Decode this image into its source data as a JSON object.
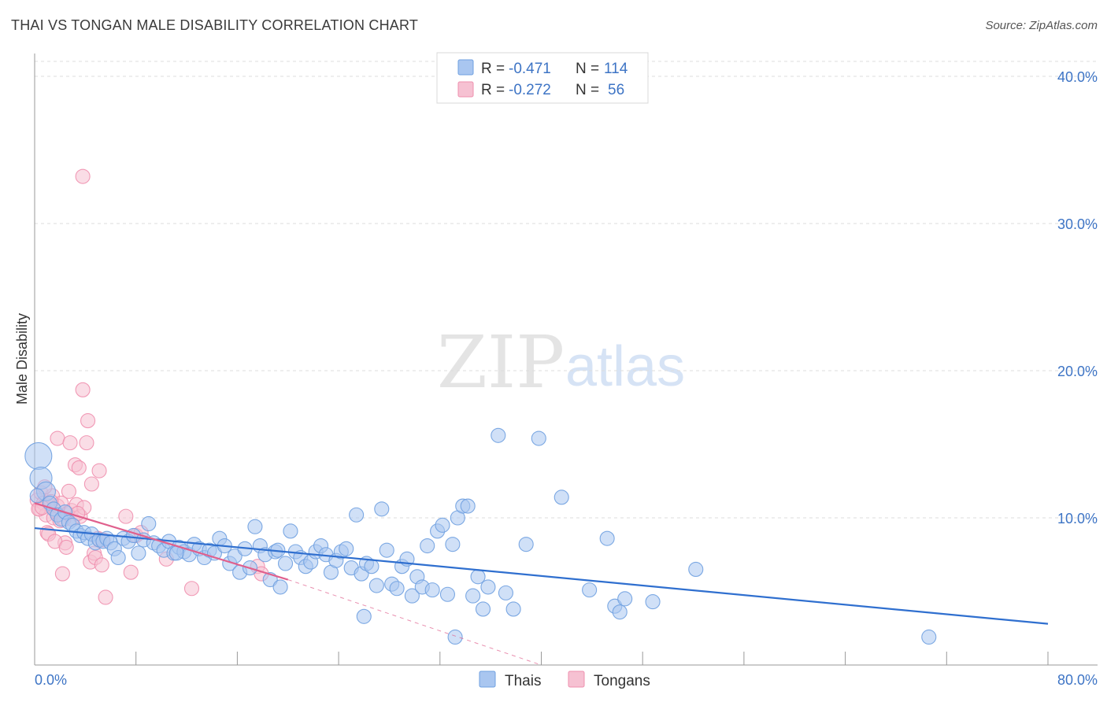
{
  "title": "THAI VS TONGAN MALE DISABILITY CORRELATION CHART",
  "source": "Source: ZipAtlas.com",
  "watermark": {
    "zip": "ZIP",
    "atlas": "atlas"
  },
  "colors": {
    "thais": "#6fa0e0",
    "thais_fill": "#a9c6f0",
    "tongans": "#ef8fae",
    "tongans_fill": "#f6c1d2",
    "thais_line": "#2f6fcf",
    "tongans_line": "#e0608d",
    "tick_text": "#3d74c5"
  },
  "legend_box": {
    "rows": [
      {
        "r_label": "R =",
        "r_value": "-0.471",
        "n_label": "N =",
        "n_value": "114"
      },
      {
        "r_label": "R =",
        "r_value": "-0.272",
        "n_label": "N =",
        "n_value": "56"
      }
    ]
  },
  "bottom_legend": [
    "Thais",
    "Tongans"
  ],
  "chart_data": {
    "type": "scatter",
    "ylabel": "Male Disability",
    "xlim": [
      0,
      80
    ],
    "ylim": [
      0,
      40
    ],
    "x_tick_labels": [
      {
        "value": 0,
        "label": "0.0%"
      },
      {
        "value": 80,
        "label": "80.0%"
      }
    ],
    "y_tick_labels": [
      {
        "value": 10,
        "label": "10.0%"
      },
      {
        "value": 20,
        "label": "20.0%"
      },
      {
        "value": 30,
        "label": "30.0%"
      },
      {
        "value": 40,
        "label": "40.0%"
      }
    ],
    "grid": true,
    "legend_position": "top-center",
    "series": [
      {
        "name": "Thais",
        "r": -0.471,
        "n": 114,
        "trend": {
          "x": [
            0,
            80
          ],
          "y": [
            9.3,
            2.8
          ]
        },
        "points": [
          [
            0.3,
            14.2
          ],
          [
            0.5,
            12.7
          ],
          [
            0.9,
            11.8
          ],
          [
            1.2,
            11.0
          ],
          [
            1.5,
            10.6
          ],
          [
            1.8,
            10.2
          ],
          [
            2.1,
            9.9
          ],
          [
            2.4,
            10.4
          ],
          [
            2.7,
            9.7
          ],
          [
            3.0,
            9.5
          ],
          [
            3.3,
            9.1
          ],
          [
            3.6,
            8.8
          ],
          [
            3.9,
            9.0
          ],
          [
            4.2,
            8.6
          ],
          [
            4.5,
            8.9
          ],
          [
            4.8,
            8.3
          ],
          [
            5.1,
            8.5
          ],
          [
            5.4,
            8.4
          ],
          [
            5.7,
            8.6
          ],
          [
            6.0,
            8.3
          ],
          [
            6.3,
            7.9
          ],
          [
            6.6,
            7.3
          ],
          [
            7.0,
            8.6
          ],
          [
            7.4,
            8.4
          ],
          [
            7.8,
            8.8
          ],
          [
            8.2,
            7.6
          ],
          [
            8.6,
            8.5
          ],
          [
            9.0,
            9.6
          ],
          [
            9.4,
            8.3
          ],
          [
            9.8,
            8.1
          ],
          [
            10.2,
            7.8
          ],
          [
            10.6,
            8.4
          ],
          [
            11.0,
            7.6
          ],
          [
            11.4,
            8.0
          ],
          [
            11.8,
            7.7
          ],
          [
            12.2,
            7.5
          ],
          [
            12.6,
            8.2
          ],
          [
            13.0,
            7.9
          ],
          [
            13.4,
            7.3
          ],
          [
            13.8,
            7.8
          ],
          [
            14.2,
            7.6
          ],
          [
            14.6,
            8.6
          ],
          [
            15.0,
            8.1
          ],
          [
            15.4,
            6.9
          ],
          [
            15.8,
            7.4
          ],
          [
            16.2,
            6.3
          ],
          [
            16.6,
            7.9
          ],
          [
            17.0,
            6.6
          ],
          [
            17.4,
            9.4
          ],
          [
            17.8,
            8.1
          ],
          [
            18.2,
            7.5
          ],
          [
            18.6,
            5.8
          ],
          [
            19.0,
            7.7
          ],
          [
            19.4,
            5.3
          ],
          [
            19.8,
            6.9
          ],
          [
            20.2,
            9.1
          ],
          [
            20.6,
            7.7
          ],
          [
            21.0,
            7.3
          ],
          [
            21.4,
            6.7
          ],
          [
            21.8,
            7.0
          ],
          [
            22.2,
            7.7
          ],
          [
            22.6,
            8.1
          ],
          [
            23.0,
            7.5
          ],
          [
            23.4,
            6.3
          ],
          [
            23.8,
            7.1
          ],
          [
            24.2,
            7.7
          ],
          [
            24.6,
            7.9
          ],
          [
            25.0,
            6.6
          ],
          [
            25.4,
            10.2
          ],
          [
            25.8,
            6.2
          ],
          [
            26.2,
            6.9
          ],
          [
            26.6,
            6.7
          ],
          [
            27.0,
            5.4
          ],
          [
            27.4,
            10.6
          ],
          [
            27.8,
            7.8
          ],
          [
            28.2,
            5.5
          ],
          [
            28.6,
            5.2
          ],
          [
            29.0,
            6.7
          ],
          [
            29.4,
            7.2
          ],
          [
            29.8,
            4.7
          ],
          [
            30.2,
            6.0
          ],
          [
            30.6,
            5.3
          ],
          [
            31.0,
            8.1
          ],
          [
            31.4,
            5.1
          ],
          [
            31.8,
            9.1
          ],
          [
            32.2,
            9.5
          ],
          [
            32.6,
            4.8
          ],
          [
            33.0,
            8.2
          ],
          [
            33.4,
            10.0
          ],
          [
            33.8,
            10.8
          ],
          [
            34.2,
            10.8
          ],
          [
            34.6,
            4.7
          ],
          [
            35.0,
            6.0
          ],
          [
            35.4,
            3.8
          ],
          [
            35.8,
            5.3
          ],
          [
            36.6,
            15.6
          ],
          [
            37.2,
            4.9
          ],
          [
            37.8,
            3.8
          ],
          [
            38.8,
            8.2
          ],
          [
            39.8,
            15.4
          ],
          [
            41.6,
            11.4
          ],
          [
            43.8,
            5.1
          ],
          [
            45.2,
            8.6
          ],
          [
            45.8,
            4.0
          ],
          [
            46.2,
            3.6
          ],
          [
            46.6,
            4.5
          ],
          [
            48.8,
            4.3
          ],
          [
            52.2,
            6.5
          ],
          [
            70.6,
            1.9
          ],
          [
            0.2,
            11.5
          ],
          [
            26.0,
            3.3
          ],
          [
            33.2,
            1.9
          ],
          [
            11.2,
            7.6
          ],
          [
            19.2,
            7.8
          ]
        ]
      },
      {
        "name": "Tongans",
        "r": -0.272,
        "n": 56,
        "trend": {
          "x": [
            0,
            20
          ],
          "y": [
            11.0,
            5.8
          ],
          "dashed_to": {
            "x": 40,
            "y": 0.0
          }
        },
        "points": [
          [
            0.2,
            11.2
          ],
          [
            0.4,
            10.6
          ],
          [
            0.5,
            11.7
          ],
          [
            0.7,
            11.0
          ],
          [
            0.9,
            10.2
          ],
          [
            1.0,
            9.0
          ],
          [
            1.2,
            10.9
          ],
          [
            1.4,
            11.5
          ],
          [
            1.5,
            10.0
          ],
          [
            1.7,
            10.4
          ],
          [
            1.8,
            10.8
          ],
          [
            2.0,
            9.8
          ],
          [
            2.1,
            11.0
          ],
          [
            2.3,
            9.9
          ],
          [
            2.4,
            8.3
          ],
          [
            2.6,
            10.3
          ],
          [
            2.7,
            11.8
          ],
          [
            2.9,
            10.5
          ],
          [
            3.0,
            9.9
          ],
          [
            3.2,
            13.6
          ],
          [
            3.3,
            10.9
          ],
          [
            3.5,
            13.4
          ],
          [
            3.6,
            10.1
          ],
          [
            3.8,
            18.7
          ],
          [
            3.9,
            10.7
          ],
          [
            4.1,
            15.1
          ],
          [
            4.2,
            16.6
          ],
          [
            4.4,
            7.0
          ],
          [
            4.5,
            12.3
          ],
          [
            4.7,
            7.6
          ],
          [
            4.8,
            7.3
          ],
          [
            5.0,
            8.6
          ],
          [
            5.1,
            13.2
          ],
          [
            5.3,
            6.8
          ],
          [
            5.4,
            8.5
          ],
          [
            5.6,
            4.6
          ],
          [
            7.2,
            10.1
          ],
          [
            7.6,
            6.3
          ],
          [
            8.0,
            8.8
          ],
          [
            8.4,
            9.0
          ],
          [
            10.4,
            7.2
          ],
          [
            12.4,
            5.2
          ],
          [
            17.6,
            6.7
          ],
          [
            17.9,
            6.2
          ],
          [
            3.8,
            33.2
          ],
          [
            1.8,
            15.4
          ],
          [
            2.8,
            15.1
          ],
          [
            0.3,
            10.6
          ],
          [
            1.1,
            8.9
          ],
          [
            1.6,
            8.4
          ],
          [
            2.2,
            6.2
          ],
          [
            2.5,
            8.0
          ],
          [
            3.4,
            10.3
          ],
          [
            0.8,
            12.1
          ],
          [
            1.3,
            11.1
          ],
          [
            0.6,
            10.7
          ]
        ]
      }
    ]
  }
}
